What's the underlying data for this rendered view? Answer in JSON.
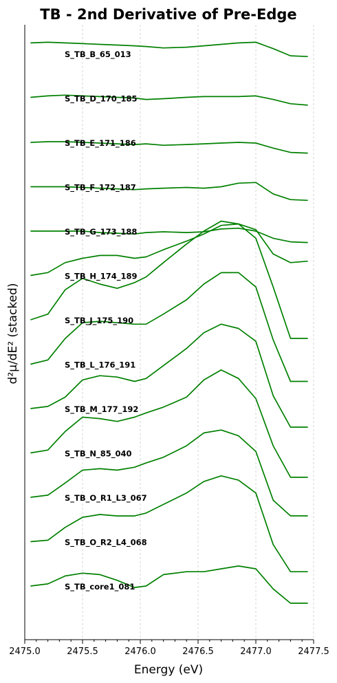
{
  "chart_data": {
    "type": "line",
    "title": "TB - 2nd Derivative of Pre-Edge",
    "xlabel": "Energy (eV)",
    "ylabel": "d²μ/dE² (stacked)",
    "xlim": [
      2475.0,
      2477.5
    ],
    "x_ticks": [
      "2475.0",
      "2475.5",
      "2476.0",
      "2476.5",
      "2477.0",
      "2477.5"
    ],
    "grid": "vertical-dashed",
    "line_color": "#008000",
    "x": [
      2475.05,
      2475.2,
      2475.35,
      2475.5,
      2475.65,
      2475.8,
      2475.95,
      2476.05,
      2476.2,
      2476.4,
      2476.55,
      2476.7,
      2476.85,
      2477.0,
      2477.15,
      2477.3,
      2477.45
    ],
    "series": [
      {
        "label": "S_TB_B_65_013",
        "values": [
          0.15,
          0.16,
          0.15,
          0.14,
          0.13,
          0.12,
          0.11,
          0.1,
          0.08,
          0.09,
          0.11,
          0.13,
          0.15,
          0.16,
          0.07,
          -0.03,
          -0.04
        ]
      },
      {
        "label": "S_TB_D_170_185",
        "values": [
          0.01,
          0.03,
          0.04,
          0.03,
          0.02,
          0.01,
          0.0,
          -0.02,
          -0.01,
          0.01,
          0.02,
          0.02,
          0.02,
          0.03,
          -0.02,
          -0.08,
          -0.1
        ]
      },
      {
        "label": "S_TB_E_171_186",
        "values": [
          0.0,
          0.01,
          0.01,
          0.0,
          -0.01,
          -0.02,
          -0.03,
          -0.02,
          -0.04,
          -0.03,
          -0.02,
          -0.01,
          0.0,
          -0.01,
          -0.08,
          -0.14,
          -0.15
        ]
      },
      {
        "label": "S_TB_F_172_187",
        "values": [
          0.0,
          0.0,
          0.0,
          -0.01,
          -0.02,
          -0.03,
          -0.04,
          -0.03,
          -0.02,
          -0.01,
          -0.02,
          0.0,
          0.05,
          0.06,
          -0.1,
          -0.18,
          -0.19
        ]
      },
      {
        "label": "S_TB_G_173_188",
        "values": [
          0.0,
          0.0,
          0.0,
          0.0,
          -0.02,
          -0.03,
          -0.04,
          -0.02,
          -0.01,
          -0.02,
          -0.01,
          0.03,
          0.04,
          0.0,
          -0.1,
          -0.15,
          -0.16
        ]
      },
      {
        "label": "S_TB_H_174_189",
        "values": [
          0.0,
          0.04,
          0.18,
          0.24,
          0.28,
          0.28,
          0.24,
          0.26,
          0.36,
          0.48,
          0.58,
          0.7,
          0.72,
          0.64,
          0.3,
          0.18,
          0.2
        ]
      },
      {
        "label": "S_TB_J_175_190",
        "values": [
          0.0,
          0.08,
          0.42,
          0.58,
          0.5,
          0.44,
          0.52,
          0.6,
          0.8,
          1.06,
          1.24,
          1.38,
          1.34,
          1.14,
          0.46,
          -0.26,
          -0.26
        ]
      },
      {
        "label": "S_TB_L_176_191",
        "values": [
          0.0,
          0.06,
          0.36,
          0.58,
          0.6,
          0.58,
          0.56,
          0.56,
          0.7,
          0.9,
          1.12,
          1.28,
          1.28,
          1.08,
          0.34,
          -0.24,
          -0.24
        ]
      },
      {
        "label": "S_TB_M_177_192",
        "values": [
          0.0,
          0.03,
          0.16,
          0.4,
          0.46,
          0.44,
          0.38,
          0.42,
          0.6,
          0.84,
          1.06,
          1.18,
          1.12,
          0.94,
          0.18,
          -0.26,
          -0.26
        ]
      },
      {
        "label": "S_TB_N_85_040",
        "values": [
          0.0,
          0.04,
          0.3,
          0.5,
          0.48,
          0.44,
          0.5,
          0.56,
          0.64,
          0.78,
          1.02,
          1.16,
          1.04,
          0.76,
          0.1,
          -0.34,
          -0.34
        ]
      },
      {
        "label": "S_TB_O_R1_L3_067",
        "values": [
          0.0,
          0.03,
          0.2,
          0.38,
          0.4,
          0.38,
          0.42,
          0.48,
          0.56,
          0.72,
          0.9,
          0.94,
          0.86,
          0.64,
          -0.04,
          -0.26,
          -0.26
        ]
      },
      {
        "label": "S_TB_O_R2_L4_068",
        "values": [
          0.0,
          0.02,
          0.2,
          0.34,
          0.38,
          0.36,
          0.36,
          0.4,
          0.52,
          0.68,
          0.84,
          0.92,
          0.86,
          0.68,
          -0.04,
          -0.42,
          -0.42
        ]
      },
      {
        "label": "S_TB_core1_081",
        "values": [
          0.0,
          0.03,
          0.14,
          0.18,
          0.16,
          0.08,
          -0.02,
          0.0,
          0.16,
          0.2,
          0.2,
          0.24,
          0.28,
          0.24,
          -0.04,
          -0.24,
          -0.24
        ]
      }
    ]
  }
}
